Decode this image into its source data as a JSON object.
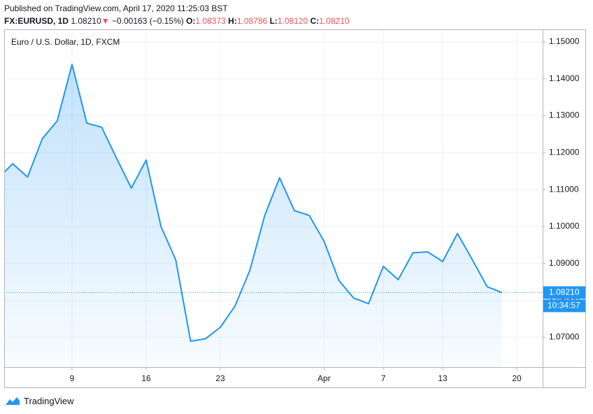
{
  "header": {
    "published": "Published on TradingView.com, April 17, 2020 11:25:03 BST",
    "symbol": "FX:EURUSD, 1D",
    "last": "1.08210",
    "arrow": "▼",
    "change": "−0.00163 (−0.15%)",
    "o_label": "O:",
    "open": "1.08373",
    "h_label": "H:",
    "high": "1.08786",
    "l_label": "L:",
    "low": "1.08120",
    "c_label": "C:",
    "close": "1.08210"
  },
  "chart_data": {
    "type": "area",
    "legend_title": "Euro / U.S. Dollar, 1D, FXCM",
    "categories": [
      null,
      null,
      null,
      null,
      null,
      "9",
      null,
      null,
      null,
      null,
      "16",
      null,
      null,
      null,
      null,
      "23",
      null,
      null,
      null,
      null,
      null,
      null,
      "Apr",
      null,
      null,
      null,
      "7",
      null,
      null,
      null,
      "13",
      null,
      null,
      null,
      null,
      "20"
    ],
    "series": [
      {
        "name": "EURUSD",
        "color": "#2196f3",
        "values": [
          1.113,
          1.117,
          1.1134,
          1.1238,
          1.1286,
          1.1439,
          1.128,
          1.1269,
          1.1185,
          1.1104,
          1.118,
          1.1,
          1.0909,
          1.0689,
          1.0696,
          1.0727,
          1.0785,
          1.0882,
          1.103,
          1.1132,
          1.1043,
          1.103,
          1.096,
          1.0854,
          1.0806,
          1.0791,
          1.0892,
          1.0856,
          1.0929,
          1.0931,
          1.0905,
          1.0981,
          1.091,
          1.0837,
          1.0821,
          null
        ]
      }
    ],
    "ylim": [
      1.0619,
      1.1534
    ],
    "yticks": [
      {
        "value": 1.07,
        "label": "1.07000"
      },
      {
        "value": 1.08,
        "label": "1.08000"
      },
      {
        "value": 1.09,
        "label": "1.09000"
      },
      {
        "value": 1.1,
        "label": "1.10000"
      },
      {
        "value": 1.11,
        "label": "1.11000"
      },
      {
        "value": 1.12,
        "label": "1.12000"
      },
      {
        "value": 1.13,
        "label": "1.13000"
      },
      {
        "value": 1.14,
        "label": "1.14000"
      },
      {
        "value": 1.15,
        "label": "1.15000"
      }
    ],
    "last_price": {
      "value": 1.0821,
      "label": "1.08210"
    },
    "countdown": "10:34:57",
    "grid": true
  },
  "footer": {
    "brand": "TradingView"
  }
}
